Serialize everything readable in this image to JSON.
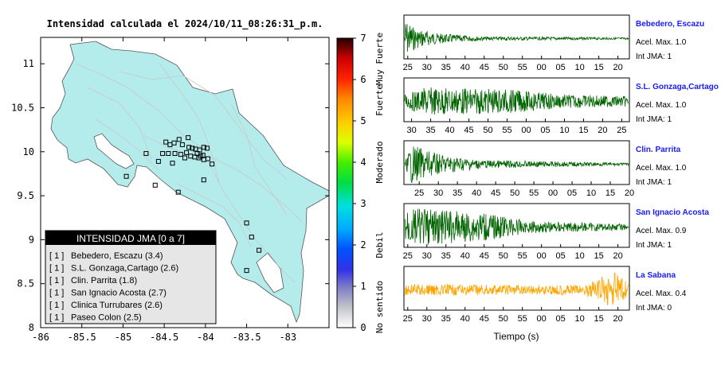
{
  "chart_data": [
    {
      "type": "map",
      "title": "Intensidad calculada el 2024/10/11_08:26:31_p.m.",
      "x_ticks": [
        "-86",
        "-85.5",
        "-85",
        "-84.5",
        "-84",
        "-83.5",
        "-83"
      ],
      "y_ticks": [
        "8",
        "8.5",
        "9",
        "9.5",
        "10",
        "10.5",
        "11"
      ],
      "xlim": [
        -86,
        -82.5
      ],
      "ylim": [
        8,
        11.3
      ],
      "land_color": "#b4ecec",
      "colorbar": {
        "ticks": [
          "0",
          "1",
          "2",
          "3",
          "4",
          "5",
          "6",
          "7"
        ],
        "range": [
          0,
          7
        ],
        "labels": [
          "No sentido",
          "Debil",
          "Moderado",
          "Fuerte",
          "Muy Fuerte"
        ]
      },
      "legend": {
        "header": "INTENSIDAD JMA [0 a 7]",
        "entries": [
          {
            "code": "[ 1 ]",
            "text": "Bebedero, Escazu (3.4)"
          },
          {
            "code": "[ 1 ]",
            "text": "S.L. Gonzaga,Cartago (2.6)"
          },
          {
            "code": "[ 1 ]",
            "text": "Clin. Parrita (1.8)"
          },
          {
            "code": "[ 1 ]",
            "text": "San Ignacio Acosta (2.7)"
          },
          {
            "code": "[ 1 ]",
            "text": "Clinica Turrubares (2.6)"
          },
          {
            "code": "[ 1 ]",
            "text": "Paseo Colon (2.5)"
          }
        ]
      },
      "stations": [
        {
          "lon": -84.48,
          "lat": 10.11
        },
        {
          "lon": -84.43,
          "lat": 10.08
        },
        {
          "lon": -84.38,
          "lat": 10.1
        },
        {
          "lon": -84.32,
          "lat": 10.14
        },
        {
          "lon": -84.21,
          "lat": 10.16
        },
        {
          "lon": -84.28,
          "lat": 10.08
        },
        {
          "lon": -84.2,
          "lat": 10.05
        },
        {
          "lon": -84.16,
          "lat": 10.04
        },
        {
          "lon": -84.12,
          "lat": 10.03
        },
        {
          "lon": -84.07,
          "lat": 10.02
        },
        {
          "lon": -84.02,
          "lat": 10.05
        },
        {
          "lon": -83.98,
          "lat": 10.04
        },
        {
          "lon": -84.52,
          "lat": 9.98
        },
        {
          "lon": -84.45,
          "lat": 9.98
        },
        {
          "lon": -84.37,
          "lat": 9.98
        },
        {
          "lon": -84.3,
          "lat": 9.97
        },
        {
          "lon": -84.23,
          "lat": 9.99
        },
        {
          "lon": -84.18,
          "lat": 9.95
        },
        {
          "lon": -84.13,
          "lat": 9.94
        },
        {
          "lon": -84.1,
          "lat": 9.98
        },
        {
          "lon": -84.08,
          "lat": 9.93
        },
        {
          "lon": -84.06,
          "lat": 9.95
        },
        {
          "lon": -84.02,
          "lat": 9.91
        },
        {
          "lon": -84.03,
          "lat": 9.96
        },
        {
          "lon": -83.97,
          "lat": 9.92
        },
        {
          "lon": -83.92,
          "lat": 9.86
        },
        {
          "lon": -84.25,
          "lat": 9.93
        },
        {
          "lon": -84.72,
          "lat": 9.98
        },
        {
          "lon": -84.57,
          "lat": 9.89
        },
        {
          "lon": -84.4,
          "lat": 9.87
        },
        {
          "lon": -84.96,
          "lat": 9.72
        },
        {
          "lon": -84.61,
          "lat": 9.62
        },
        {
          "lon": -84.33,
          "lat": 9.54
        },
        {
          "lon": -84.02,
          "lat": 9.68
        },
        {
          "lon": -83.5,
          "lat": 9.19
        },
        {
          "lon": -83.44,
          "lat": 9.03
        },
        {
          "lon": -83.35,
          "lat": 8.88
        },
        {
          "lon": -83.5,
          "lat": 8.65
        }
      ]
    },
    {
      "type": "line",
      "xlabel": "Tiempo (s)",
      "traces": [
        {
          "name": "Bebedero, Escazu",
          "accel": "Acel. Max. 1.0",
          "jma": "Int JMA: 1",
          "color": "#006400",
          "ticks": [
            "25",
            "30",
            "35",
            "40",
            "45",
            "50",
            "55",
            "00",
            "05",
            "10",
            "15",
            "20"
          ],
          "tick_start_sec": 25,
          "envelope": [
            [
              0,
              0.95
            ],
            [
              0.05,
              0.5
            ],
            [
              0.15,
              0.25
            ],
            [
              0.35,
              0.1
            ],
            [
              1,
              0.05
            ]
          ]
        },
        {
          "name": "S.L. Gonzaga,Cartago",
          "accel": "Acel. Max. 1.0",
          "jma": "Int JMA: 1",
          "color": "#006400",
          "ticks": [
            "30",
            "35",
            "40",
            "45",
            "50",
            "55",
            "00",
            "05",
            "10",
            "15",
            "20",
            "25"
          ],
          "tick_start_sec": 28,
          "envelope": [
            [
              0,
              0.35
            ],
            [
              0.1,
              0.7
            ],
            [
              0.45,
              0.6
            ],
            [
              0.7,
              0.35
            ],
            [
              1,
              0.25
            ]
          ]
        },
        {
          "name": "Clin. Parrita",
          "accel": "Acel. Max. 1.0",
          "jma": "Int JMA: 1",
          "color": "#006400",
          "ticks": [
            "25",
            "30",
            "35",
            "40",
            "45",
            "50",
            "55",
            "00",
            "05",
            "10",
            "15",
            "20"
          ],
          "tick_start_sec": 21,
          "envelope": [
            [
              0,
              0.1
            ],
            [
              0.03,
              0.95
            ],
            [
              0.15,
              0.5
            ],
            [
              0.35,
              0.2
            ],
            [
              1,
              0.06
            ]
          ]
        },
        {
          "name": "San Ignacio Acosta",
          "accel": "Acel. Max. 0.9",
          "jma": "Int JMA: 1",
          "color": "#006400",
          "ticks": [
            "25",
            "30",
            "35",
            "40",
            "45",
            "50",
            "55",
            "00",
            "05",
            "10",
            "15",
            "20"
          ],
          "tick_start_sec": 24,
          "envelope": [
            [
              0,
              0.95
            ],
            [
              0.35,
              0.7
            ],
            [
              0.55,
              0.3
            ],
            [
              1,
              0.15
            ]
          ]
        },
        {
          "name": "La Sabana",
          "accel": "Acel. Max. 0.4",
          "jma": "Int JMA: 0",
          "color": "#ffa500",
          "ticks": [
            "25",
            "30",
            "35",
            "40",
            "45",
            "50",
            "55",
            "00",
            "05",
            "10",
            "15",
            "20"
          ],
          "tick_start_sec": 24,
          "envelope": [
            [
              0,
              0.3
            ],
            [
              0.4,
              0.25
            ],
            [
              0.8,
              0.25
            ],
            [
              0.94,
              0.95
            ],
            [
              1,
              0.3
            ]
          ]
        }
      ]
    }
  ]
}
